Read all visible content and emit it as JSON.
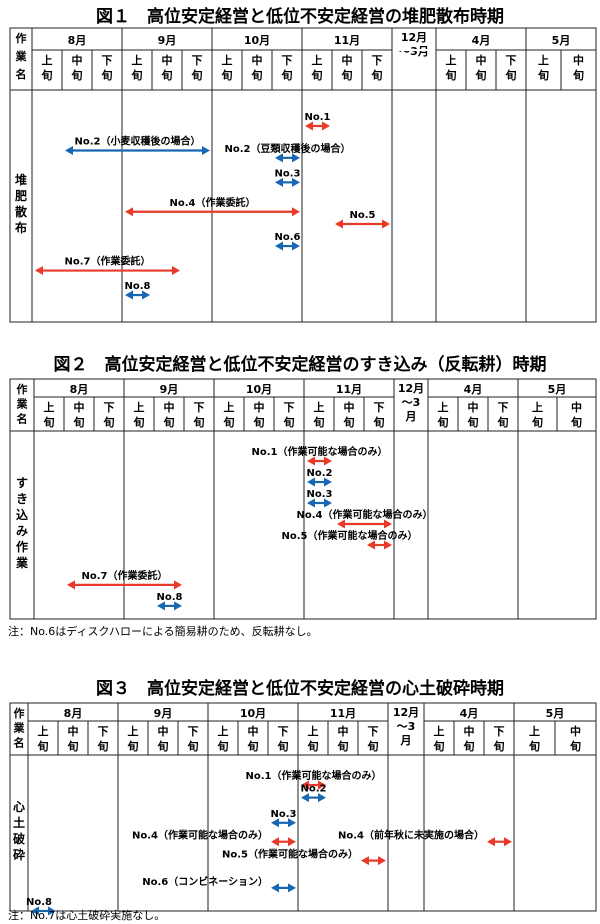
{
  "chart_data": [
    {
      "type": "gantt",
      "title": "図１　高位安定経営と低位不安定経営の堆肥散布時期",
      "header_corner": [
        "作",
        "業",
        "名"
      ],
      "months": [
        {
          "label": "8月",
          "cols": [
            "上旬",
            "中旬",
            "下旬"
          ]
        },
        {
          "label": "9月",
          "cols": [
            "上旬",
            "中旬",
            "下旬"
          ]
        },
        {
          "label": "10月",
          "cols": [
            "上旬",
            "中旬",
            "下旬"
          ]
        },
        {
          "label": "11月",
          "cols": [
            "上旬",
            "中旬",
            "下旬"
          ]
        },
        {
          "label": "12月\n～3月",
          "cols": [
            ""
          ]
        },
        {
          "label": "4月",
          "cols": [
            "上旬",
            "中旬",
            "下旬"
          ]
        },
        {
          "label": "5月",
          "cols": [
            "上旬",
            "中旬"
          ]
        }
      ],
      "task_label": "堆肥散布",
      "bars": [
        {
          "label": "No.1",
          "start": 9,
          "end": 10,
          "color": "red",
          "row": 0,
          "label_pos": "above-center"
        },
        {
          "label": "No.2（小麦収穫後の場合）",
          "start": 1,
          "end": 6,
          "color": "blue",
          "row": 1,
          "label_pos": "above-center"
        },
        {
          "label": "No.2（豆類収穫後の場合）",
          "start": 8,
          "end": 9,
          "color": "blue",
          "row": 1.3,
          "label_pos": "above-center"
        },
        {
          "label": "No.3",
          "start": 8,
          "end": 9,
          "color": "blue",
          "row": 2.3,
          "label_pos": "above-center"
        },
        {
          "label": "No.4（作業委託）",
          "start": 3,
          "end": 9,
          "color": "red",
          "row": 3.5,
          "label_pos": "above-center"
        },
        {
          "label": "No.5",
          "start": 10,
          "end": 12,
          "color": "red",
          "row": 4,
          "label_pos": "above-center"
        },
        {
          "label": "No.6",
          "start": 8,
          "end": 9,
          "color": "blue",
          "row": 4.9,
          "label_pos": "above-center"
        },
        {
          "label": "No.7（作業委託）",
          "start": 0,
          "end": 5,
          "color": "red",
          "row": 5.9,
          "label_pos": "above-center"
        },
        {
          "label": "No.8",
          "start": 3,
          "end": 4,
          "color": "blue",
          "row": 6.9,
          "label_pos": "above-center"
        }
      ],
      "note": ""
    },
    {
      "type": "gantt",
      "title": "図２　高位安定経営と低位不安定経営のすき込み（反転耕）時期",
      "header_corner": [
        "作",
        "業",
        "名"
      ],
      "months": [
        {
          "label": "8月",
          "cols": [
            "上旬",
            "中旬",
            "下旬"
          ]
        },
        {
          "label": "9月",
          "cols": [
            "上旬",
            "中旬",
            "下旬"
          ]
        },
        {
          "label": "10月",
          "cols": [
            "上旬",
            "中旬",
            "下旬"
          ]
        },
        {
          "label": "11月",
          "cols": [
            "上旬",
            "中旬",
            "下旬"
          ]
        },
        {
          "label": "12月\n～3\n月",
          "cols": [
            ""
          ]
        },
        {
          "label": "4月",
          "cols": [
            "上旬",
            "中旬",
            "下旬"
          ]
        },
        {
          "label": "5月",
          "cols": [
            "上旬",
            "中旬"
          ]
        }
      ],
      "task_label": "すき込み作業",
      "bars": [
        {
          "label": "No.1（作業可能な場合のみ）",
          "start": 9,
          "end": 10,
          "color": "red",
          "row": 0,
          "label_pos": "above-center"
        },
        {
          "label": "No.2",
          "start": 9,
          "end": 10,
          "color": "blue",
          "row": 1,
          "label_pos": "above-center"
        },
        {
          "label": "No.3",
          "start": 9,
          "end": 10,
          "color": "blue",
          "row": 2,
          "label_pos": "above-center"
        },
        {
          "label": "No.4（作業可能な場合のみ）",
          "start": 10,
          "end": 12,
          "color": "red",
          "row": 3,
          "label_pos": "above-center"
        },
        {
          "label": "No.5（作業可能な場合のみ）",
          "start": 11,
          "end": 12,
          "color": "red",
          "row": 4,
          "label_pos": "above-right"
        },
        {
          "label": "No.7（作業委託）",
          "start": 1,
          "end": 5,
          "color": "red",
          "row": 5.9,
          "label_pos": "above-center"
        },
        {
          "label": "No.8",
          "start": 4,
          "end": 5,
          "color": "blue",
          "row": 6.9,
          "label_pos": "above-center"
        }
      ],
      "note": "注：No.6はディスクハローによる簡易耕のため、反転耕なし。"
    },
    {
      "type": "gantt",
      "title": "図３　高位安定経営と低位不安定経営の心土破砕時期",
      "header_corner": [
        "作",
        "業",
        "名"
      ],
      "months": [
        {
          "label": "8月",
          "cols": [
            "上旬",
            "中旬",
            "下旬"
          ]
        },
        {
          "label": "9月",
          "cols": [
            "上旬",
            "中旬",
            "下旬"
          ]
        },
        {
          "label": "10月",
          "cols": [
            "上旬",
            "中旬",
            "下旬"
          ]
        },
        {
          "label": "11月",
          "cols": [
            "上旬",
            "中旬",
            "下旬"
          ]
        },
        {
          "label": "12月\n～3\n月",
          "cols": [
            ""
          ]
        },
        {
          "label": "4月",
          "cols": [
            "上旬",
            "中旬",
            "下旬"
          ]
        },
        {
          "label": "5月",
          "cols": [
            "上旬",
            "中旬"
          ]
        }
      ],
      "task_label": "心土破砕",
      "bars": [
        {
          "label": "No.1（作業可能な場合のみ）",
          "start": 9,
          "end": 10,
          "color": "red",
          "row": 0,
          "label_pos": "above-center"
        },
        {
          "label": "No.2",
          "start": 9,
          "end": 10,
          "color": "blue",
          "row": 0.6,
          "label_pos": "above-center"
        },
        {
          "label": "No.3",
          "start": 8,
          "end": 9,
          "color": "blue",
          "row": 1.8,
          "label_pos": "above-center"
        },
        {
          "label": "No.4（作業可能な場合のみ）",
          "start": 8,
          "end": 9,
          "color": "red",
          "row": 2.7,
          "label_pos": "left"
        },
        {
          "label": "No.4（前年秋に未実施の場合）",
          "start": 15,
          "end": 16,
          "color": "red",
          "row": 2.7,
          "label_pos": "left"
        },
        {
          "label": "No.5（作業可能な場合のみ）",
          "start": 11,
          "end": 12,
          "color": "red",
          "row": 3.6,
          "label_pos": "left"
        },
        {
          "label": "No.6（コンビネーション）",
          "start": 8,
          "end": 9,
          "color": "blue",
          "row": 4.9,
          "label_pos": "left"
        },
        {
          "label": "No.8",
          "start": 0,
          "end": 1,
          "color": "blue",
          "row": 6.0,
          "label_pos": "above-left"
        }
      ],
      "note": "注：No.7は心土破砕実施なし。"
    }
  ]
}
